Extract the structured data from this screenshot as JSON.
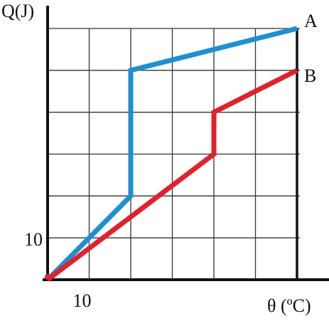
{
  "chart_data": {
    "type": "line",
    "y_label": "Q(J)",
    "x_label": "θ (ºC)",
    "xlim": [
      0,
      60
    ],
    "ylim": [
      0,
      60
    ],
    "xticks": [
      10
    ],
    "yticks": [
      10
    ],
    "xgrid": [
      0,
      10,
      20,
      30,
      40,
      50,
      60
    ],
    "ygrid": [
      0,
      10,
      20,
      30,
      40,
      50,
      60
    ],
    "series": [
      {
        "name": "A",
        "color": "#1e90d2",
        "x": [
          0,
          20,
          20,
          60
        ],
        "values": [
          0,
          20,
          50,
          60
        ]
      },
      {
        "name": "B",
        "color": "#e0222c",
        "x": [
          0,
          40,
          40,
          60
        ],
        "values": [
          0,
          30,
          40,
          50
        ]
      }
    ]
  }
}
